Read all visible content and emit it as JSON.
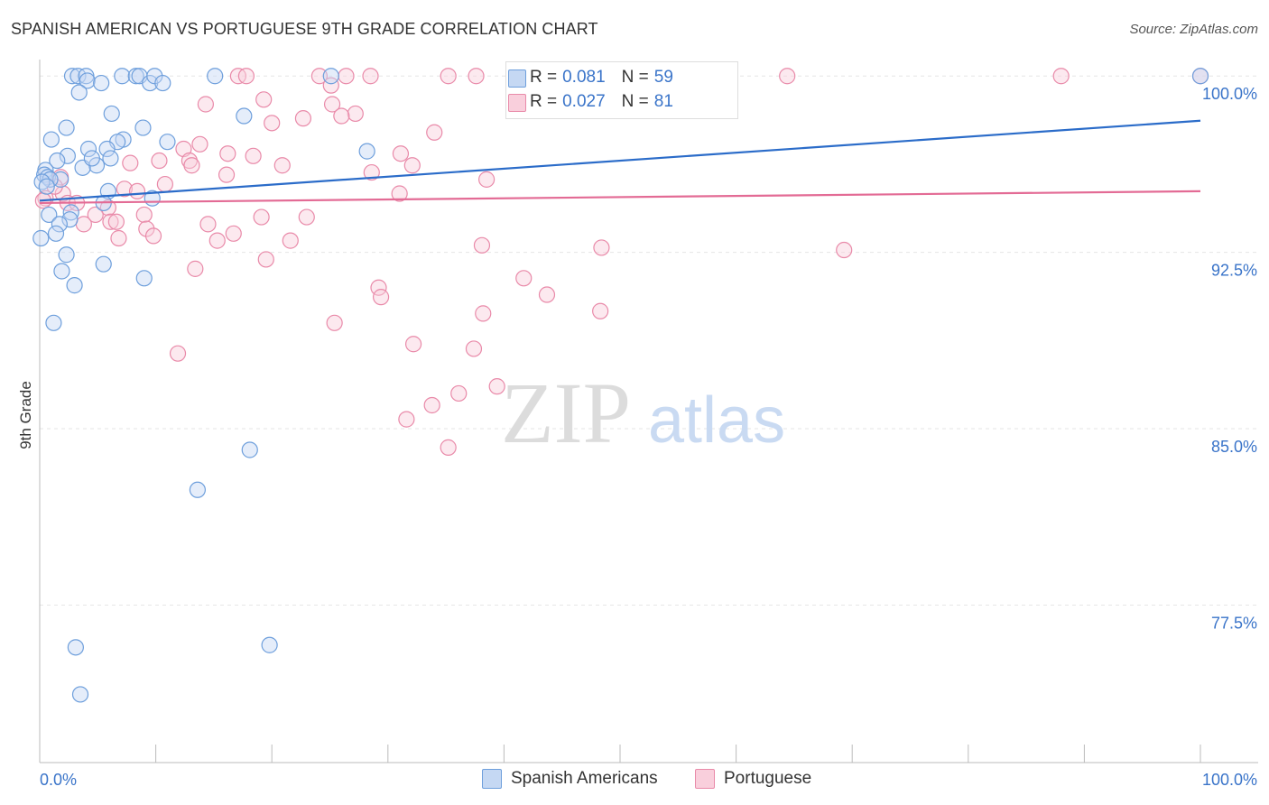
{
  "title": "SPANISH AMERICAN VS PORTUGUESE 9TH GRADE CORRELATION CHART",
  "source": "Source: ZipAtlas.com",
  "watermark": {
    "zip": "ZIP",
    "atlas": "atlas"
  },
  "legend": {
    "blue": {
      "r_label": "R =",
      "r_value": "0.081",
      "n_label": "N =",
      "n_value": "59"
    },
    "pink": {
      "r_label": "R =",
      "r_value": "0.027",
      "n_label": "N =",
      "n_value": "81"
    }
  },
  "colors": {
    "blue_fill": "#c5d8f3",
    "blue_stroke": "#6e9fdc",
    "blue_line": "#2b6cc9",
    "pink_fill": "#f9cfdc",
    "pink_stroke": "#e98aa9",
    "pink_line": "#e36b95",
    "tick_label": "#3a74c9",
    "grid": "#e6e6e6"
  },
  "chart_data": {
    "type": "scatter",
    "title": "SPANISH AMERICAN VS PORTUGUESE 9TH GRADE CORRELATION CHART",
    "xlabel": "",
    "ylabel": "9th Grade",
    "xlim": [
      0,
      100
    ],
    "ylim": [
      70.8,
      100.7
    ],
    "x_tick_labels": [
      "0.0%",
      "100.0%"
    ],
    "y_ticks": [
      77.5,
      85.0,
      92.5,
      100.0
    ],
    "y_tick_labels": [
      "77.5%",
      "85.0%",
      "92.5%",
      "100.0%"
    ],
    "grid": true,
    "legend_position": "bottom",
    "series": [
      {
        "name": "Spanish Americans",
        "color": "blue",
        "trend": {
          "x": [
            0,
            100
          ],
          "y": [
            94.7,
            98.1
          ]
        },
        "points": [
          [
            2.8,
            100
          ],
          [
            3.3,
            100
          ],
          [
            4.0,
            100
          ],
          [
            4.1,
            99.8
          ],
          [
            5.3,
            99.7
          ],
          [
            7.1,
            100
          ],
          [
            8.3,
            100
          ],
          [
            8.6,
            100
          ],
          [
            9.5,
            99.7
          ],
          [
            9.9,
            100
          ],
          [
            10.6,
            99.7
          ],
          [
            15.1,
            100
          ],
          [
            25.1,
            100
          ],
          [
            100,
            100
          ],
          [
            3.4,
            99.3
          ],
          [
            6.2,
            98.4
          ],
          [
            17.6,
            98.3
          ],
          [
            2.3,
            97.8
          ],
          [
            8.9,
            97.8
          ],
          [
            1.0,
            97.3
          ],
          [
            7.2,
            97.3
          ],
          [
            6.7,
            97.2
          ],
          [
            11.0,
            97.2
          ],
          [
            4.2,
            96.9
          ],
          [
            5.8,
            96.9
          ],
          [
            28.2,
            96.8
          ],
          [
            2.4,
            96.6
          ],
          [
            1.5,
            96.4
          ],
          [
            4.9,
            96.2
          ],
          [
            3.7,
            96.1
          ],
          [
            0.5,
            96.0
          ],
          [
            0.4,
            95.8
          ],
          [
            0.7,
            95.7
          ],
          [
            1.8,
            95.6
          ],
          [
            0.9,
            95.6
          ],
          [
            0.2,
            95.5
          ],
          [
            0.6,
            95.3
          ],
          [
            5.9,
            95.1
          ],
          [
            9.7,
            94.8
          ],
          [
            5.5,
            94.6
          ],
          [
            2.7,
            94.2
          ],
          [
            0.8,
            94.1
          ],
          [
            2.6,
            93.9
          ],
          [
            1.7,
            93.7
          ],
          [
            1.4,
            93.3
          ],
          [
            0.1,
            93.1
          ],
          [
            2.3,
            92.4
          ],
          [
            5.5,
            92.0
          ],
          [
            1.9,
            91.7
          ],
          [
            9.0,
            91.4
          ],
          [
            3.0,
            91.1
          ],
          [
            1.2,
            89.5
          ],
          [
            18.1,
            84.1
          ],
          [
            13.6,
            82.4
          ],
          [
            19.8,
            75.8
          ],
          [
            3.1,
            75.7
          ],
          [
            3.5,
            73.7
          ],
          [
            6.1,
            96.5
          ],
          [
            4.5,
            96.5
          ]
        ]
      },
      {
        "name": "Portuguese",
        "color": "pink",
        "trend": {
          "x": [
            0,
            100
          ],
          "y": [
            94.6,
            95.1
          ]
        },
        "points": [
          [
            17.1,
            100
          ],
          [
            17.8,
            100
          ],
          [
            24.1,
            100
          ],
          [
            26.4,
            100
          ],
          [
            28.5,
            100
          ],
          [
            35.2,
            100
          ],
          [
            37.6,
            100
          ],
          [
            45.0,
            100
          ],
          [
            47.0,
            100
          ],
          [
            64.4,
            100
          ],
          [
            88.0,
            100
          ],
          [
            25.1,
            99.6
          ],
          [
            19.3,
            99.0
          ],
          [
            14.3,
            98.8
          ],
          [
            25.2,
            98.8
          ],
          [
            27.2,
            98.4
          ],
          [
            26.0,
            98.3
          ],
          [
            22.7,
            98.2
          ],
          [
            20.0,
            98.0
          ],
          [
            34.0,
            97.6
          ],
          [
            13.8,
            97.1
          ],
          [
            12.4,
            96.9
          ],
          [
            16.2,
            96.7
          ],
          [
            31.1,
            96.7
          ],
          [
            18.4,
            96.6
          ],
          [
            10.3,
            96.4
          ],
          [
            12.9,
            96.4
          ],
          [
            7.8,
            96.3
          ],
          [
            13.1,
            96.2
          ],
          [
            20.9,
            96.2
          ],
          [
            32.1,
            96.2
          ],
          [
            28.6,
            95.9
          ],
          [
            16.1,
            95.8
          ],
          [
            1.8,
            95.7
          ],
          [
            38.5,
            95.6
          ],
          [
            10.8,
            95.4
          ],
          [
            7.3,
            95.2
          ],
          [
            8.4,
            95.1
          ],
          [
            2.0,
            95.0
          ],
          [
            31.0,
            95.0
          ],
          [
            2.4,
            94.6
          ],
          [
            3.2,
            94.6
          ],
          [
            5.9,
            94.4
          ],
          [
            4.8,
            94.1
          ],
          [
            9.0,
            94.1
          ],
          [
            23.0,
            94.0
          ],
          [
            19.1,
            94.0
          ],
          [
            6.1,
            93.8
          ],
          [
            6.6,
            93.8
          ],
          [
            3.8,
            93.7
          ],
          [
            14.5,
            93.7
          ],
          [
            9.2,
            93.5
          ],
          [
            16.7,
            93.3
          ],
          [
            9.8,
            93.2
          ],
          [
            6.8,
            93.1
          ],
          [
            15.3,
            93.0
          ],
          [
            21.6,
            93.0
          ],
          [
            38.1,
            92.8
          ],
          [
            48.4,
            92.7
          ],
          [
            69.3,
            92.6
          ],
          [
            19.5,
            92.2
          ],
          [
            13.4,
            91.8
          ],
          [
            41.7,
            91.4
          ],
          [
            29.2,
            91.0
          ],
          [
            29.4,
            90.6
          ],
          [
            43.7,
            90.7
          ],
          [
            38.2,
            89.9
          ],
          [
            48.3,
            90.0
          ],
          [
            25.4,
            89.5
          ],
          [
            32.2,
            88.6
          ],
          [
            37.4,
            88.4
          ],
          [
            11.9,
            88.2
          ],
          [
            39.4,
            86.8
          ],
          [
            36.1,
            86.5
          ],
          [
            33.8,
            86.0
          ],
          [
            31.6,
            85.4
          ],
          [
            35.2,
            84.2
          ],
          [
            0.5,
            94.8
          ],
          [
            1.3,
            95.3
          ],
          [
            0.3,
            94.7
          ],
          [
            100,
            100
          ]
        ]
      }
    ]
  }
}
